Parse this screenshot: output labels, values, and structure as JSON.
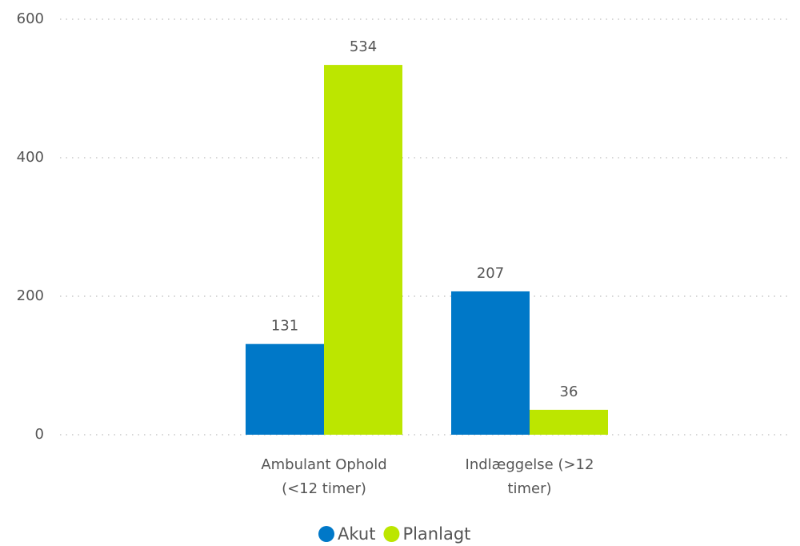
{
  "chart_data": {
    "type": "bar",
    "categories": [
      "Ambulant Ophold (<12 timer)",
      "Indlæggelse (>12 timer)"
    ],
    "series": [
      {
        "name": "Akut",
        "color": "#0078c8",
        "values": [
          131,
          207
        ]
      },
      {
        "name": "Planlagt",
        "color": "#bce600",
        "values": [
          534,
          36
        ]
      }
    ],
    "ylim": [
      0,
      600
    ],
    "yticks": [
      0,
      200,
      400,
      600
    ],
    "grid": true,
    "legend": "bottom"
  }
}
